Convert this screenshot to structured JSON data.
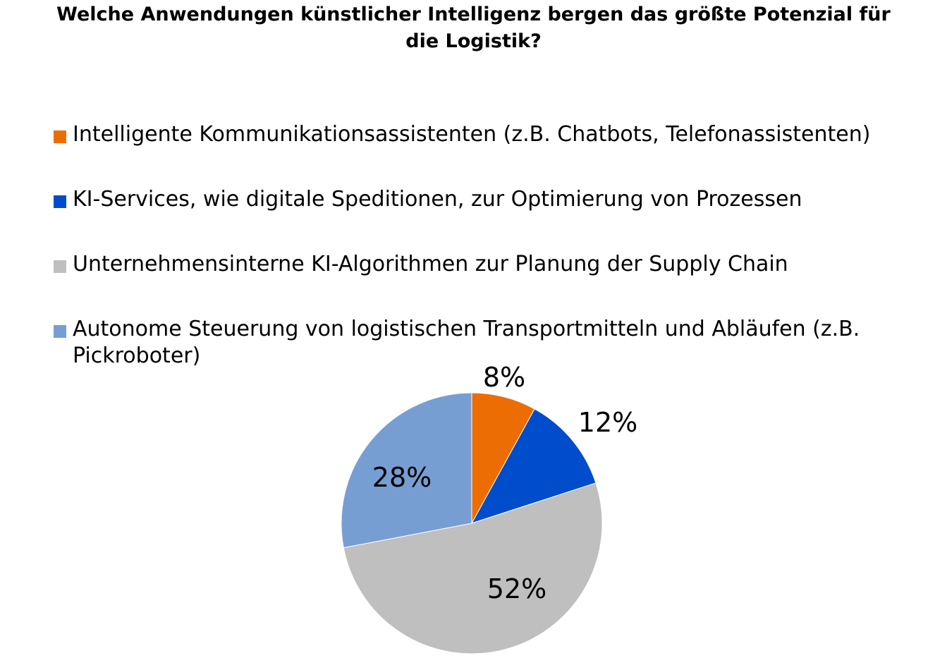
{
  "chart_data": {
    "type": "pie",
    "title": "Welche Anwendungen künstlicher Intelligenz bergen das größte Potenzial für die Logistik?",
    "title_lines": [
      "Welche Anwendungen künstlicher Intelligenz bergen das größte Potenzial für",
      "die Logistik?"
    ],
    "legend_position": "top",
    "slices": [
      {
        "label": "Intelligente Kommunikationsassistenten (z.B. Chatbots, Telefonassistenten)",
        "label_lines": [
          "Intelligente Kommunikationsassistenten (z.B. Chatbots, Telefonassistenten)"
        ],
        "value": 8,
        "value_label": "8%",
        "color": "#ED6D05"
      },
      {
        "label": "KI-Services, wie digitale Speditionen, zur Optimierung von Prozessen",
        "label_lines": [
          "KI-Services, wie digitale Speditionen, zur Optimierung von Prozessen"
        ],
        "value": 12,
        "value_label": "12%",
        "color": "#004DCB"
      },
      {
        "label": "Unternehmensinterne KI-Algorithmen zur Planung der Supply Chain",
        "label_lines": [
          "Unternehmensinterne KI-Algorithmen zur Planung der Supply Chain"
        ],
        "value": 52,
        "value_label": "52%",
        "color": "#BFBFBF"
      },
      {
        "label": "Autonome Steuerung von logistischen Transportmitteln und Abläufen (z.B. Pickroboter)",
        "label_lines": [
          "Autonome Steuerung von logistischen Transportmitteln und Abläufen (z.B.",
          "Pickroboter)"
        ],
        "value": 28,
        "value_label": "28%",
        "color": "#779ED3"
      }
    ]
  }
}
